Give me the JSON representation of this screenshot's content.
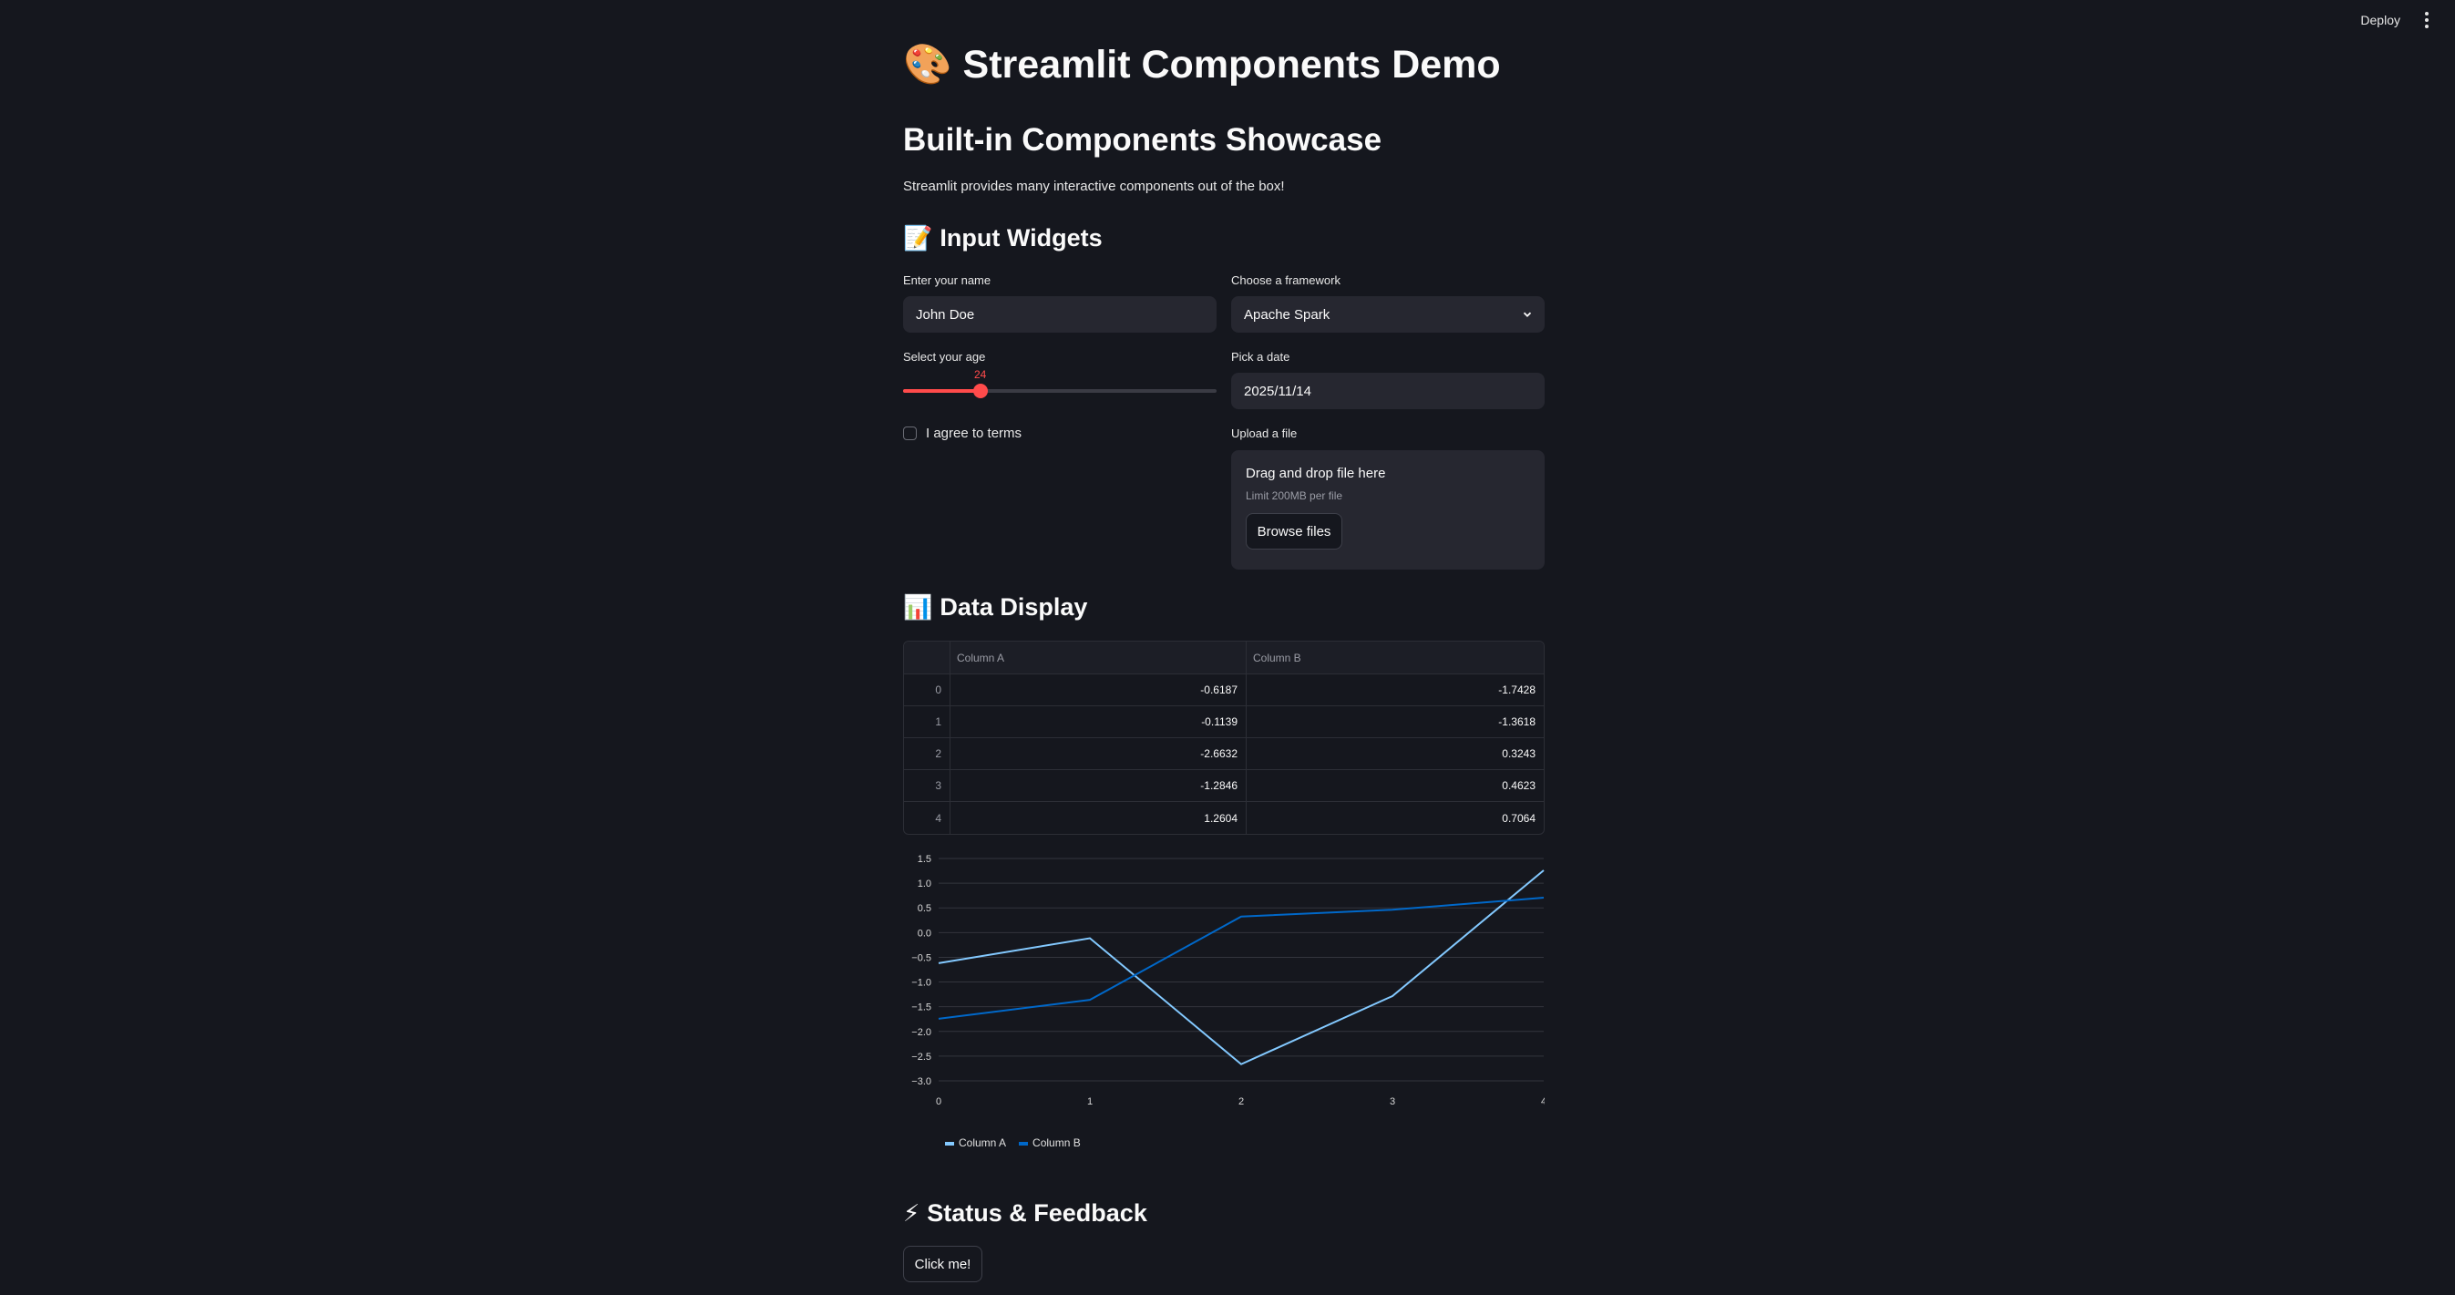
{
  "topbar": {
    "deploy_label": "Deploy",
    "menu_icon": "kebab-menu-icon"
  },
  "header": {
    "title_emoji": "🎨",
    "title": "Streamlit Components Demo",
    "subtitle": "Built-in Components Showcase",
    "intro": "Streamlit provides many interactive components out of the box!"
  },
  "input_widgets": {
    "heading_emoji": "📝",
    "heading": "Input Widgets",
    "name": {
      "label": "Enter your name",
      "value": "John Doe"
    },
    "framework": {
      "label": "Choose a framework",
      "value": "Apache Spark"
    },
    "age": {
      "label": "Select your age",
      "value": "24",
      "min": 0,
      "max": 100
    },
    "date": {
      "label": "Pick a date",
      "value": "2025/11/14"
    },
    "terms": {
      "label": "I agree to terms",
      "checked": false
    },
    "upload": {
      "label": "Upload a file",
      "drop_text": "Drag and drop file here",
      "limit_text": "Limit 200MB per file",
      "browse_label": "Browse files"
    }
  },
  "data_display": {
    "heading_emoji": "📊",
    "heading": "Data Display",
    "table": {
      "columns": [
        "",
        "Column A",
        "Column B"
      ],
      "rows": [
        [
          "0",
          "-0.6187",
          "-1.7428"
        ],
        [
          "1",
          "-0.1139",
          "-1.3618"
        ],
        [
          "2",
          "-2.6632",
          "0.3243"
        ],
        [
          "3",
          "-1.2846",
          "0.4623"
        ],
        [
          "4",
          "1.2604",
          "0.7064"
        ]
      ]
    },
    "legend": [
      "Column A",
      "Column B"
    ]
  },
  "chart_data": {
    "type": "line",
    "title": "",
    "xlabel": "",
    "ylabel": "",
    "x": [
      0,
      1,
      2,
      3,
      4
    ],
    "series": [
      {
        "name": "Column A",
        "color": "#83c9ff",
        "values": [
          -0.6187,
          -0.1139,
          -2.6632,
          -1.2846,
          1.2604
        ]
      },
      {
        "name": "Column B",
        "color": "#0068c9",
        "values": [
          -1.7428,
          -1.3618,
          0.3243,
          0.4623,
          0.7064
        ]
      }
    ],
    "xticks": [
      "0",
      "1",
      "2",
      "3",
      "4"
    ],
    "yticks": [
      "1.5",
      "1.0",
      "0.5",
      "0.0",
      "−0.5",
      "−1.0",
      "−1.5",
      "−2.0",
      "−2.5",
      "−3.0"
    ],
    "ylim": [
      -3.0,
      1.5
    ],
    "grid": true,
    "legend_position": "bottom-left"
  },
  "status_feedback": {
    "heading_emoji": "⚡",
    "heading": "Status & Feedback",
    "button_label": "Click me!"
  },
  "colors": {
    "accent": "#ff4b4b",
    "background": "#15171e",
    "widget_bg": "#262730"
  }
}
